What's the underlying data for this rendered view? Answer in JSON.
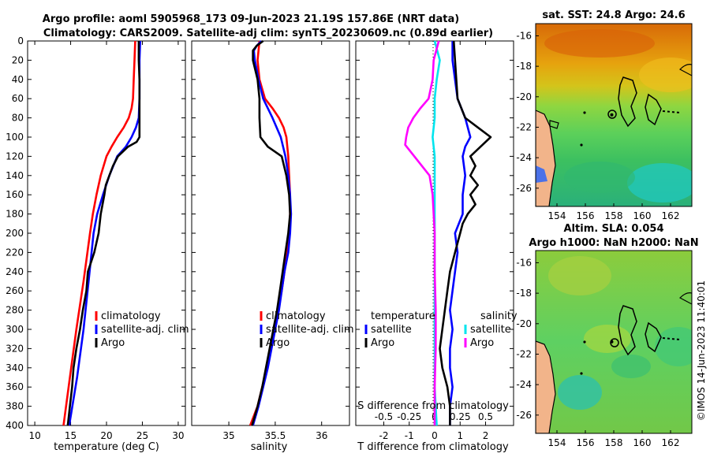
{
  "title": {
    "line1": "Argo profile: aoml 5905968_173 09-Jun-2023 21.19S 157.86E (NRT data)",
    "line2": "Climatology: CARS2009. Satellite-adj clim: synTS_20230609.nc (0.89d earlier)"
  },
  "watermark": "©IMOS 14-Jun-2023 11:40:01",
  "chart_data": [
    {
      "type": "line",
      "id": "temperature",
      "xlabel": "temperature (deg C)",
      "xlim": [
        9,
        31
      ],
      "ylim": [
        400,
        0
      ],
      "xticks": [
        10,
        15,
        20,
        25,
        30
      ],
      "yticks": [
        0,
        20,
        40,
        60,
        80,
        100,
        120,
        140,
        160,
        180,
        200,
        220,
        240,
        260,
        280,
        300,
        320,
        340,
        360,
        380,
        400
      ],
      "legend": [
        "climatology",
        "satellite-adj. clim",
        "Argo"
      ],
      "series": [
        {
          "name": "climatology",
          "color": "#ff0000",
          "depth": [
            0,
            20,
            40,
            60,
            70,
            80,
            90,
            100,
            110,
            120,
            140,
            160,
            180,
            200,
            250,
            300,
            350,
            400
          ],
          "values": [
            24.0,
            23.9,
            23.8,
            23.7,
            23.5,
            23.1,
            22.4,
            21.5,
            20.7,
            20.0,
            19.2,
            18.6,
            18.1,
            17.7,
            16.8,
            15.8,
            14.9,
            14.0
          ]
        },
        {
          "name": "satellite-adj. clim",
          "color": "#0000ff",
          "depth": [
            0,
            20,
            40,
            60,
            80,
            90,
            100,
            110,
            120,
            140,
            160,
            180,
            200,
            250,
            300,
            350,
            400
          ],
          "values": [
            24.7,
            24.6,
            24.6,
            24.6,
            24.5,
            24.1,
            23.5,
            22.7,
            21.5,
            20.4,
            19.5,
            18.7,
            18.2,
            17.5,
            16.8,
            15.9,
            14.8
          ]
        },
        {
          "name": "Argo",
          "color": "#000000",
          "depth": [
            0,
            20,
            40,
            60,
            80,
            100,
            105,
            110,
            120,
            130,
            140,
            150,
            160,
            180,
            200,
            220,
            240,
            260,
            280,
            300,
            320,
            340,
            360,
            380,
            400
          ],
          "values": [
            24.5,
            24.5,
            24.6,
            24.6,
            24.6,
            24.6,
            24.2,
            23.0,
            21.6,
            20.9,
            20.4,
            19.9,
            19.7,
            19.2,
            18.9,
            18.3,
            17.4,
            17.2,
            16.7,
            16.3,
            15.8,
            15.4,
            15.2,
            14.9,
            14.6
          ]
        }
      ]
    },
    {
      "type": "line",
      "id": "salinity",
      "xlabel": "salinity",
      "xlim": [
        34.6,
        36.3
      ],
      "ylim": [
        400,
        0
      ],
      "xticks": [
        35,
        35.5,
        36
      ],
      "legend": [
        "climatology",
        "satellite-adj. clim",
        "Argo"
      ],
      "series": [
        {
          "name": "climatology",
          "color": "#ff0000",
          "depth": [
            0,
            20,
            40,
            60,
            70,
            80,
            90,
            100,
            110,
            120,
            140,
            160,
            180,
            200,
            220,
            240,
            260,
            280,
            300,
            320,
            340,
            360,
            380,
            400
          ],
          "values": [
            35.33,
            35.31,
            35.33,
            35.39,
            35.47,
            35.54,
            35.59,
            35.62,
            35.63,
            35.64,
            35.65,
            35.66,
            35.66,
            35.65,
            35.63,
            35.6,
            35.57,
            35.53,
            35.49,
            35.45,
            35.41,
            35.36,
            35.31,
            35.23
          ]
        },
        {
          "name": "satellite-adj. clim",
          "color": "#0000ff",
          "depth": [
            0,
            5,
            10,
            20,
            40,
            60,
            80,
            100,
            120,
            140,
            160,
            180,
            200,
            220,
            240,
            260,
            280,
            300,
            320,
            340,
            360,
            380,
            400
          ],
          "values": [
            35.35,
            35.3,
            35.27,
            35.28,
            35.32,
            35.37,
            35.47,
            35.56,
            35.61,
            35.64,
            35.66,
            35.67,
            35.66,
            35.64,
            35.6,
            35.57,
            35.54,
            35.5,
            35.46,
            35.42,
            35.37,
            35.32,
            35.26
          ]
        },
        {
          "name": "Argo",
          "color": "#000000",
          "depth": [
            0,
            5,
            10,
            20,
            40,
            60,
            80,
            100,
            110,
            120,
            140,
            160,
            180,
            200,
            220,
            240,
            260,
            280,
            300,
            320,
            340,
            360,
            380,
            400
          ],
          "values": [
            35.37,
            35.3,
            35.26,
            35.26,
            35.31,
            35.33,
            35.33,
            35.34,
            35.42,
            35.57,
            35.62,
            35.65,
            35.66,
            35.64,
            35.61,
            35.58,
            35.55,
            35.52,
            35.48,
            35.44,
            35.4,
            35.36,
            35.31,
            35.25
          ]
        }
      ]
    },
    {
      "type": "line",
      "id": "difference",
      "xlabel": "T difference from climatology",
      "xlabel_top": "S difference from climatology",
      "xlim": [
        -3.1,
        3.1
      ],
      "ylim": [
        400,
        0
      ],
      "xticks": [
        -2,
        -1,
        0,
        1,
        2
      ],
      "xticks_top": [
        "-0.5",
        "-0.25",
        "0",
        "0.25",
        "0.5"
      ],
      "legend_left_title": "temperature",
      "legend_right_title": "salinity",
      "legend": [
        "satellite",
        "Argo",
        "satellite",
        "Argo"
      ],
      "series": [
        {
          "name": "T satellite",
          "color": "#0000ff",
          "depth": [
            0,
            20,
            40,
            60,
            80,
            100,
            110,
            120,
            140,
            160,
            180,
            200,
            220,
            240,
            260,
            280,
            300,
            320,
            340,
            360,
            380,
            400
          ],
          "values": [
            0.7,
            0.7,
            0.8,
            0.9,
            1.2,
            1.4,
            1.2,
            1.1,
            1.2,
            1.1,
            1.1,
            0.8,
            0.9,
            0.8,
            0.7,
            0.6,
            0.7,
            0.6,
            0.6,
            0.7,
            0.6,
            0.6
          ]
        },
        {
          "name": "T Argo",
          "color": "#000000",
          "depth": [
            0,
            20,
            40,
            60,
            80,
            90,
            100,
            110,
            120,
            130,
            140,
            150,
            160,
            170,
            180,
            190,
            200,
            220,
            240,
            260,
            280,
            300,
            320,
            340,
            360,
            380,
            400
          ],
          "values": [
            0.75,
            0.8,
            0.85,
            0.9,
            1.2,
            1.7,
            2.2,
            1.8,
            1.4,
            1.6,
            1.4,
            1.7,
            1.4,
            1.6,
            1.3,
            1.1,
            1.0,
            0.8,
            0.6,
            0.5,
            0.4,
            0.3,
            0.2,
            0.3,
            0.5,
            0.6,
            0.6
          ]
        },
        {
          "name": "S satellite",
          "color": "#00e5ee",
          "depth": [
            0,
            20,
            40,
            60,
            80,
            100,
            120,
            140,
            160,
            200,
            240,
            280,
            320,
            360,
            400
          ],
          "values": [
            0.0,
            0.05,
            0.02,
            0.0,
            0.0,
            -0.02,
            0.0,
            0.0,
            0.0,
            0.0,
            0.0,
            0.0,
            0.0,
            0.0,
            0.02
          ]
        },
        {
          "name": "S Argo",
          "color": "#ff00ff",
          "depth": [
            0,
            20,
            40,
            60,
            70,
            80,
            90,
            100,
            108,
            120,
            140,
            160,
            180,
            200,
            240,
            280,
            320,
            360,
            400
          ],
          "values": [
            0.04,
            -0.01,
            -0.02,
            -0.06,
            -0.14,
            -0.21,
            -0.26,
            -0.28,
            -0.29,
            -0.2,
            -0.05,
            -0.02,
            -0.01,
            0.0,
            0.0,
            0.01,
            0.01,
            0.0,
            0.0
          ]
        }
      ]
    },
    {
      "type": "heatmap",
      "id": "sst_map",
      "title": "sat. SST: 24.8 Argo: 24.6",
      "xlim": [
        152.5,
        163.5
      ],
      "ylim": [
        -27.2,
        -15.2
      ],
      "xticks": [
        154,
        156,
        158,
        160,
        162
      ],
      "yticks": [
        -16,
        -18,
        -20,
        -22,
        -24,
        -26
      ],
      "profile_lon": 157.86,
      "profile_lat": -21.19
    },
    {
      "type": "heatmap",
      "id": "sla_map",
      "title": "Altim. SLA: 0.054",
      "title2": "Argo h1000: NaN h2000: NaN",
      "xlim": [
        152.5,
        163.5
      ],
      "ylim": [
        -27.2,
        -15.2
      ],
      "xticks": [
        154,
        156,
        158,
        160,
        162
      ],
      "yticks": [
        -16,
        -18,
        -20,
        -22,
        -24,
        -26
      ],
      "profile_lon": 157.86,
      "profile_lat": -21.19
    }
  ]
}
